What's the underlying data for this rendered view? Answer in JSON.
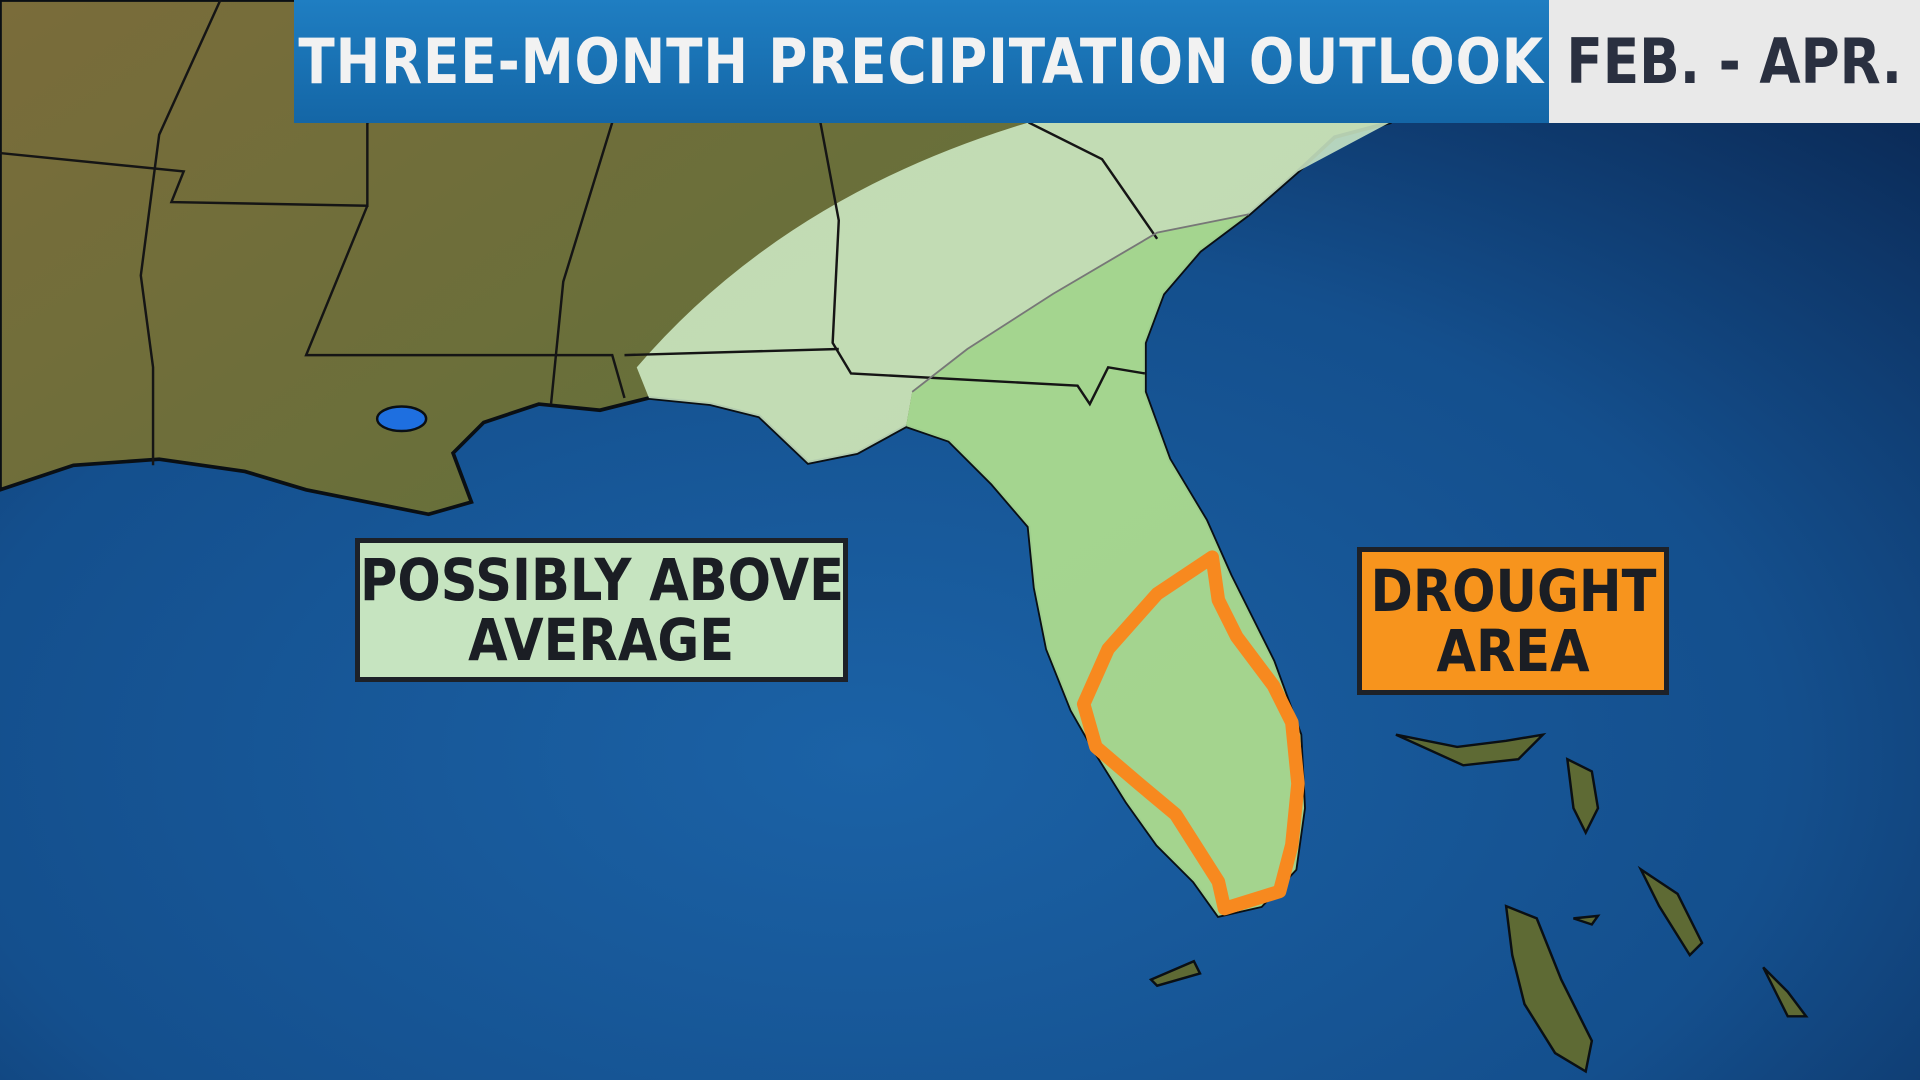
{
  "header": {
    "title": "THREE-MONTH PRECIPITATION OUTLOOK",
    "period": "FEB. - APR."
  },
  "legend": {
    "above_average_label_line1": "POSSIBLY ABOVE",
    "above_average_label_line2": "AVERAGE",
    "drought_label_line1": "DROUGHT",
    "drought_label_line2": "AREA"
  },
  "colors": {
    "ocean": "#15589a",
    "land": "#6e6a36",
    "above_average_light": "#cdebc6",
    "above_average": "#a6d991",
    "drought_outline": "#f7891f",
    "title_bar": "#1a72b6"
  }
}
